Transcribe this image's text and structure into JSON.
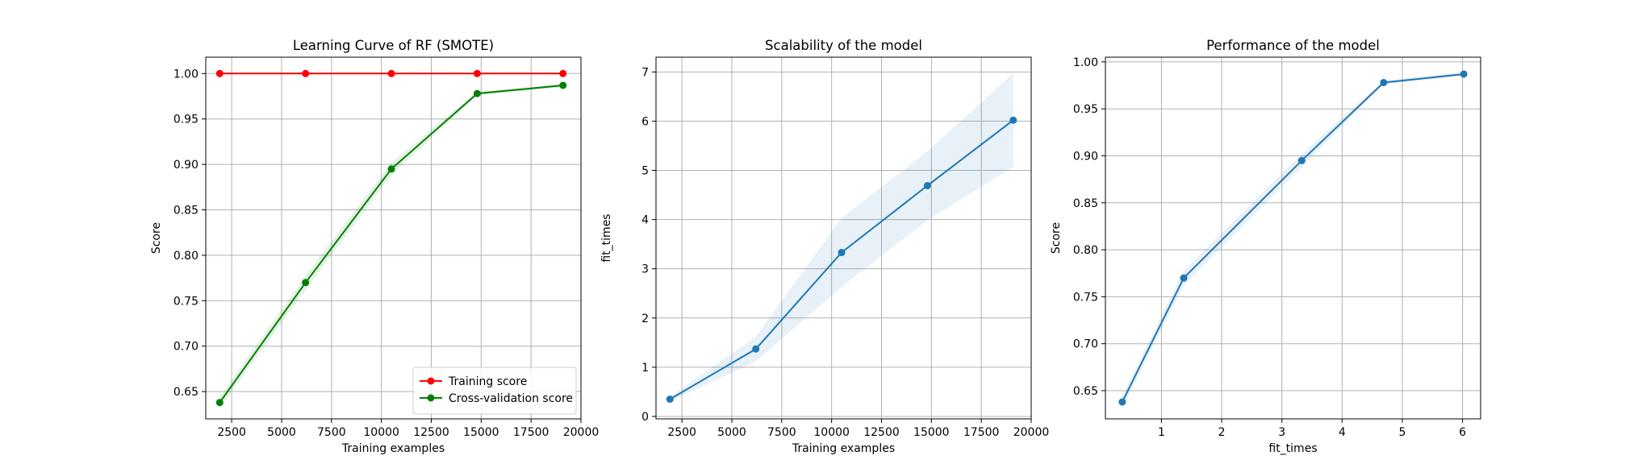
{
  "chart_data": [
    {
      "type": "line",
      "title": "Learning Curve of RF (SMOTE)",
      "xlabel": "Training examples",
      "ylabel": "Score",
      "xlim": [
        1200,
        20000
      ],
      "ylim": [
        0.62,
        1.018
      ],
      "xticks": [
        2500,
        5000,
        7500,
        10000,
        12500,
        15000,
        17500,
        20000
      ],
      "yticks": [
        0.65,
        0.7,
        0.75,
        0.8,
        0.85,
        0.9,
        0.95,
        1.0
      ],
      "grid": true,
      "legend": "lower-right",
      "x": [
        1900,
        6200,
        10500,
        14800,
        19100
      ],
      "series": [
        {
          "name": "Training score",
          "values": [
            1.0,
            1.0,
            1.0,
            1.0,
            1.0
          ],
          "band": [
            0.0,
            0.0,
            0.0,
            0.0,
            0.0
          ],
          "color": "#ff0000",
          "band_color": "#ff0000"
        },
        {
          "name": "Cross-validation score",
          "values": [
            0.638,
            0.77,
            0.895,
            0.978,
            0.987
          ],
          "band": [
            0.006,
            0.008,
            0.007,
            0.002,
            0.002
          ],
          "color": "#008000",
          "band_color": "#008000"
        }
      ]
    },
    {
      "type": "line",
      "title": "Scalability of the model",
      "xlabel": "Training examples",
      "ylabel": "fit_times",
      "xlim": [
        1200,
        20000
      ],
      "ylim": [
        -0.05,
        7.3
      ],
      "xticks": [
        2500,
        5000,
        7500,
        10000,
        12500,
        15000,
        17500,
        20000
      ],
      "yticks": [
        0,
        1,
        2,
        3,
        4,
        5,
        6,
        7
      ],
      "grid": true,
      "x": [
        1900,
        6200,
        10500,
        14800,
        19100
      ],
      "series": [
        {
          "name": "",
          "values": [
            0.35,
            1.37,
            3.33,
            4.69,
            6.02
          ],
          "band": [
            0.05,
            0.25,
            0.7,
            0.7,
            0.95
          ],
          "color": "#1f77b4",
          "band_color": "#1f77b4"
        }
      ]
    },
    {
      "type": "line",
      "title": "Performance of the model",
      "xlabel": "fit_times",
      "ylabel": "Score",
      "xlim": [
        0.07,
        6.3
      ],
      "ylim": [
        0.62,
        1.005
      ],
      "xticks": [
        1,
        2,
        3,
        4,
        5,
        6
      ],
      "yticks": [
        0.65,
        0.7,
        0.75,
        0.8,
        0.85,
        0.9,
        0.95,
        1.0
      ],
      "grid": true,
      "x": [
        0.35,
        1.37,
        3.33,
        4.69,
        6.02
      ],
      "series": [
        {
          "name": "",
          "values": [
            0.638,
            0.77,
            0.895,
            0.978,
            0.987
          ],
          "band": [
            0.006,
            0.008,
            0.007,
            0.002,
            0.002
          ],
          "color": "#1f77b4",
          "band_color": "#1f77b4"
        }
      ]
    }
  ]
}
